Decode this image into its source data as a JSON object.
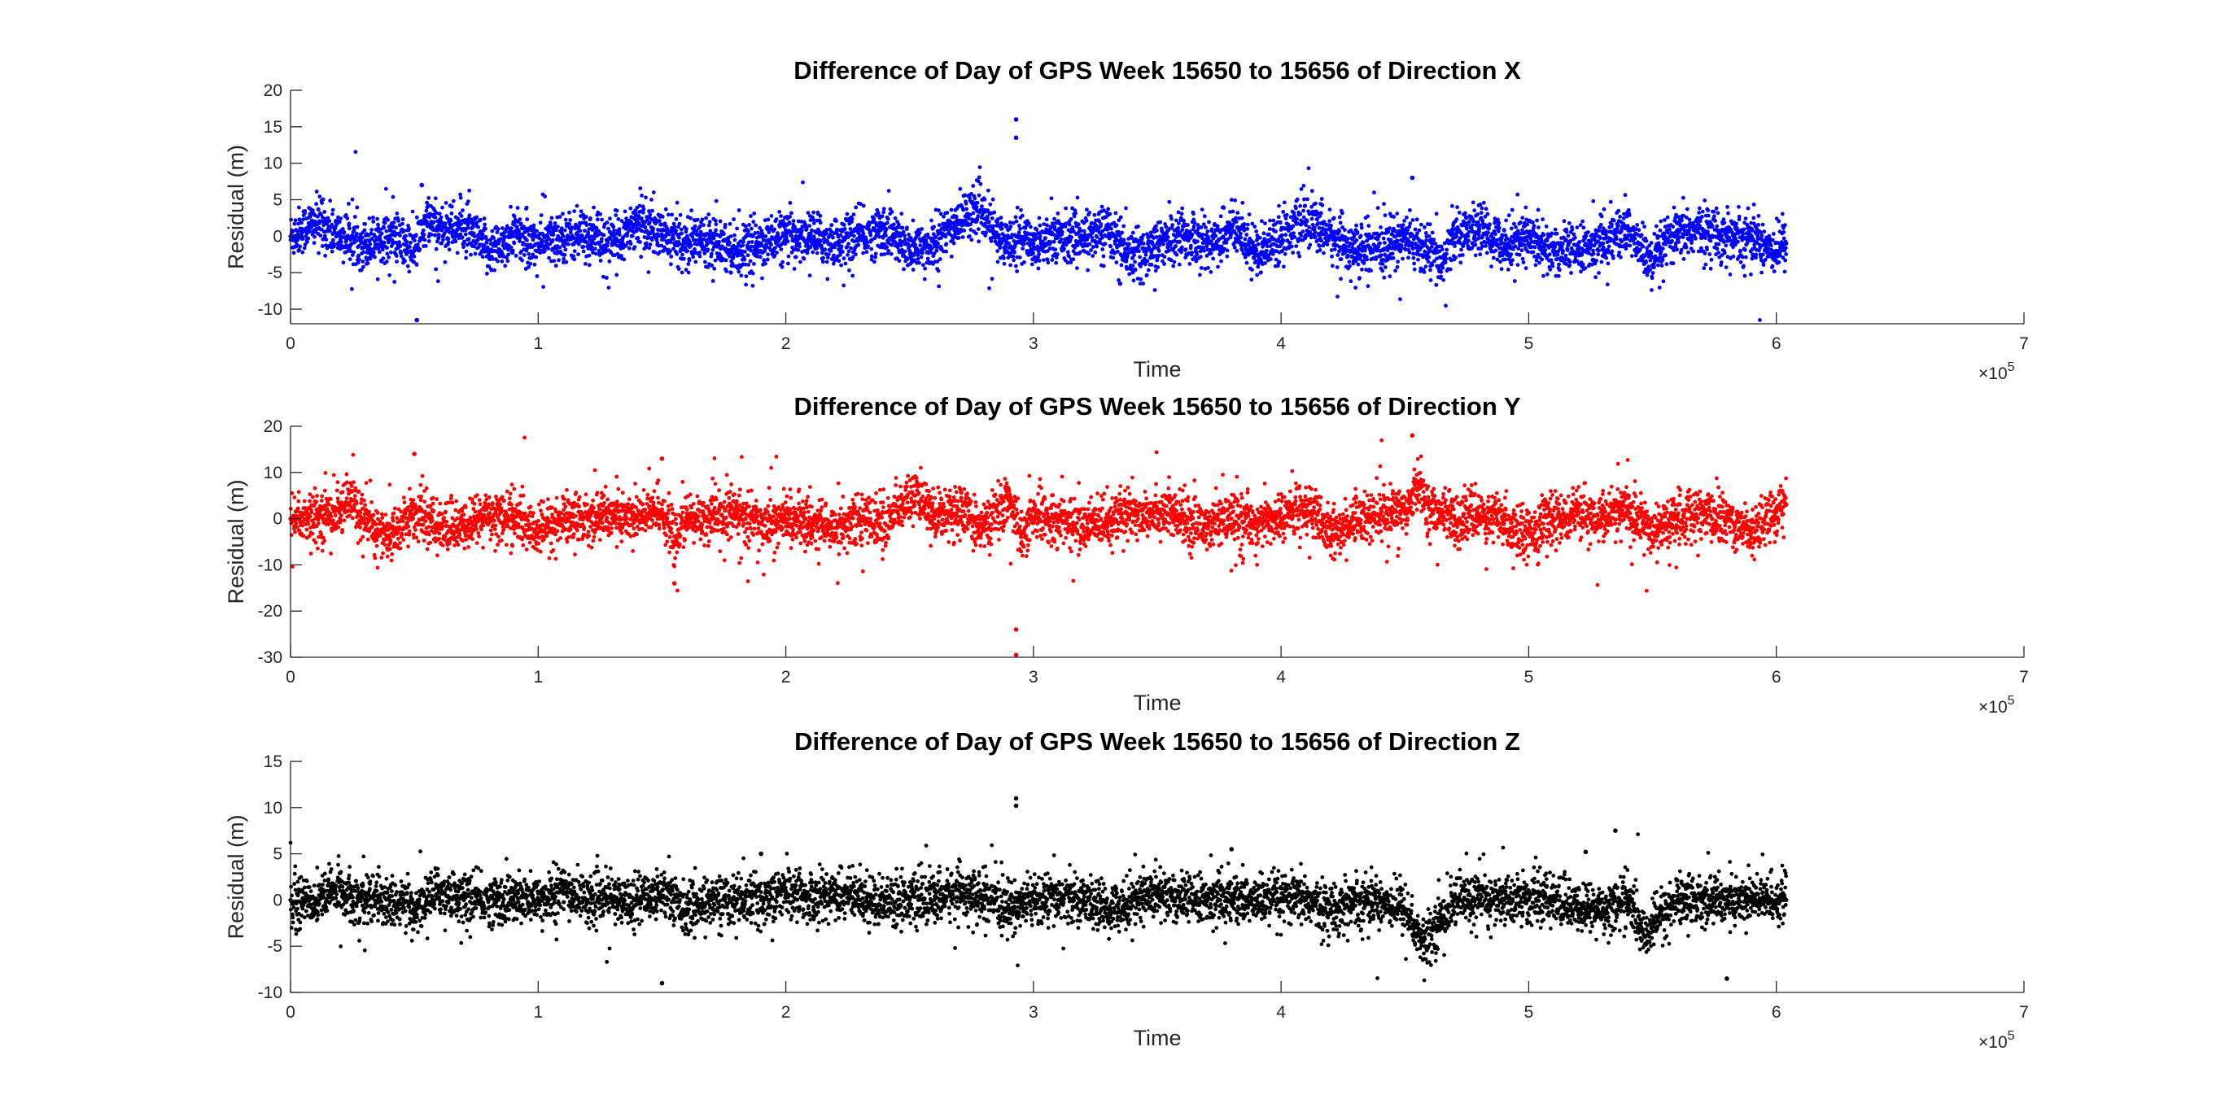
{
  "chart_data": [
    {
      "type": "scatter",
      "title": "Difference of Day of GPS Week 15650 to 15656 of Direction X",
      "xlabel": "Time",
      "ylabel": "Residual (m)",
      "x_exponent_label": "×10^5",
      "xlim": [
        0,
        700000
      ],
      "ylim": [
        -12,
        20
      ],
      "xticks": [
        0,
        100000,
        200000,
        300000,
        400000,
        500000,
        600000,
        700000
      ],
      "xtick_labels": [
        "0",
        "1",
        "2",
        "3",
        "4",
        "5",
        "6",
        "7"
      ],
      "yticks": [
        -10,
        -5,
        0,
        5,
        10,
        15,
        20
      ],
      "ytick_labels": [
        "-10",
        "-5",
        "0",
        "5",
        "10",
        "15",
        "20"
      ],
      "grid": false,
      "color": "#0000ff",
      "series": [
        {
          "x": [
            0,
            10000,
            20000,
            30000,
            40000,
            50000,
            55000,
            60000,
            70000,
            80000,
            90000,
            100000,
            110000,
            120000,
            130000,
            140000,
            150000,
            160000,
            170000,
            180000,
            190000,
            200000,
            210000,
            220000,
            230000,
            240000,
            250000,
            260000,
            270000,
            277000,
            285000,
            290000,
            293000,
            300000,
            310000,
            320000,
            330000,
            340000,
            350000,
            360000,
            370000,
            380000,
            390000,
            400000,
            410000,
            420000,
            430000,
            440000,
            450000,
            453000,
            460000,
            465000,
            470000,
            480000,
            490000,
            500000,
            510000,
            520000,
            530000,
            540000,
            550000,
            555000,
            560000,
            570000,
            580000,
            590000,
            600000,
            604000
          ],
          "y": [
            0,
            2,
            0,
            -1,
            0,
            -2,
            2,
            1,
            1,
            -2,
            0,
            -1,
            0,
            0,
            -1,
            2,
            0,
            -1,
            0,
            -2,
            -1,
            0,
            0,
            -1,
            0,
            1,
            -2,
            -1,
            2,
            4,
            0,
            -1,
            0,
            -1,
            0,
            0,
            1,
            -3,
            -1,
            0,
            -1,
            1,
            -2,
            0,
            2,
            0,
            -2,
            -2,
            0,
            -1,
            -2,
            -4,
            0,
            1,
            -1,
            0,
            -2,
            -2,
            -1,
            1,
            -4,
            -1,
            0,
            1,
            0,
            0,
            -2,
            -1
          ]
        }
      ],
      "outliers": [
        [
          293000,
          16
        ],
        [
          293000,
          13.5
        ],
        [
          51000,
          -11.5
        ],
        [
          53000,
          7
        ],
        [
          453000,
          8
        ],
        [
          335000,
          -6.5
        ]
      ]
    },
    {
      "type": "scatter",
      "title": "Difference of Day of GPS Week 15650 to 15656 of Direction Y",
      "xlabel": "Time",
      "ylabel": "Residual (m)",
      "x_exponent_label": "×10^5",
      "xlim": [
        0,
        700000
      ],
      "ylim": [
        -30,
        20
      ],
      "xticks": [
        0,
        100000,
        200000,
        300000,
        400000,
        500000,
        600000,
        700000
      ],
      "xtick_labels": [
        "0",
        "1",
        "2",
        "3",
        "4",
        "5",
        "6",
        "7"
      ],
      "yticks": [
        -30,
        -20,
        -10,
        0,
        10,
        20
      ],
      "ytick_labels": [
        "-30",
        "-20",
        "-10",
        "0",
        "10",
        "20"
      ],
      "grid": false,
      "color": "#ff0000",
      "series": [
        {
          "x": [
            0,
            10000,
            20000,
            25000,
            30000,
            40000,
            50000,
            60000,
            70000,
            80000,
            90000,
            100000,
            110000,
            120000,
            130000,
            140000,
            150000,
            155000,
            160000,
            170000,
            180000,
            190000,
            200000,
            210000,
            220000,
            230000,
            240000,
            252000,
            260000,
            270000,
            280000,
            290000,
            295000,
            300000,
            310000,
            320000,
            330000,
            340000,
            350000,
            360000,
            370000,
            380000,
            390000,
            400000,
            410000,
            420000,
            430000,
            440000,
            450000,
            455000,
            460000,
            470000,
            480000,
            490000,
            500000,
            510000,
            520000,
            530000,
            540000,
            550000,
            560000,
            570000,
            580000,
            590000,
            600000,
            604000
          ],
          "y": [
            0,
            0,
            2,
            4,
            -1,
            -4,
            1,
            -2,
            -2,
            1,
            0,
            -3,
            0,
            0,
            1,
            0,
            2,
            -5,
            0,
            0,
            1,
            -1,
            0,
            -1,
            -2,
            0,
            -1,
            5,
            1,
            2,
            -2,
            4,
            -4,
            0,
            0,
            -2,
            0,
            1,
            2,
            0,
            -2,
            0,
            -1,
            0,
            3,
            -4,
            0,
            1,
            2,
            8,
            2,
            0,
            1,
            -1,
            -3,
            0,
            1,
            0,
            2,
            -3,
            0,
            1,
            0,
            -3,
            2,
            3
          ]
        }
      ],
      "outliers": [
        [
          293000,
          -24
        ],
        [
          293000,
          -29.5
        ],
        [
          50000,
          14
        ],
        [
          150000,
          13
        ],
        [
          453000,
          18
        ],
        [
          155000,
          -14
        ]
      ]
    },
    {
      "type": "scatter",
      "title": "Difference of Day of GPS Week 15650 to 15656 of Direction Z",
      "xlabel": "Time",
      "ylabel": "Residual (m)",
      "x_exponent_label": "×10^5",
      "xlim": [
        0,
        700000
      ],
      "ylim": [
        -10,
        15
      ],
      "xticks": [
        0,
        100000,
        200000,
        300000,
        400000,
        500000,
        600000,
        700000
      ],
      "xtick_labels": [
        "0",
        "1",
        "2",
        "3",
        "4",
        "5",
        "6",
        "7"
      ],
      "yticks": [
        -10,
        -5,
        0,
        5,
        10,
        15
      ],
      "ytick_labels": [
        "-10",
        "-5",
        "0",
        "5",
        "10",
        "15"
      ],
      "grid": false,
      "color": "#000000",
      "series": [
        {
          "x": [
            0,
            10000,
            20000,
            30000,
            40000,
            50000,
            60000,
            70000,
            80000,
            90000,
            100000,
            110000,
            120000,
            130000,
            140000,
            150000,
            160000,
            170000,
            180000,
            190000,
            200000,
            210000,
            220000,
            230000,
            240000,
            250000,
            260000,
            270000,
            280000,
            290000,
            300000,
            310000,
            320000,
            330000,
            340000,
            350000,
            360000,
            370000,
            380000,
            390000,
            400000,
            410000,
            420000,
            430000,
            440000,
            450000,
            458000,
            462000,
            470000,
            480000,
            490000,
            500000,
            510000,
            520000,
            530000,
            540000,
            547000,
            552000,
            560000,
            570000,
            580000,
            590000,
            600000,
            604000
          ],
          "y": [
            0,
            0,
            1,
            0,
            0,
            -1,
            1,
            0,
            0,
            0,
            0,
            1,
            0,
            0,
            0,
            1,
            -1,
            0,
            0,
            0,
            1,
            0,
            1,
            0,
            0,
            0,
            0,
            1,
            0,
            -1,
            0,
            0,
            0,
            -1,
            0,
            1,
            0,
            0,
            0,
            0,
            0,
            0,
            -1,
            0,
            0,
            -1,
            -5,
            -3,
            0,
            0,
            0,
            0,
            0,
            -1,
            -1,
            0,
            -4,
            -2,
            0,
            0,
            0,
            0,
            0,
            0
          ]
        }
      ],
      "outliers": [
        [
          293000,
          11
        ],
        [
          293000,
          10.2
        ],
        [
          190000,
          5
        ],
        [
          380000,
          5.5
        ],
        [
          535000,
          7.5
        ],
        [
          150000,
          -9
        ],
        [
          580000,
          -8.5
        ],
        [
          523000,
          5.2
        ]
      ]
    }
  ]
}
